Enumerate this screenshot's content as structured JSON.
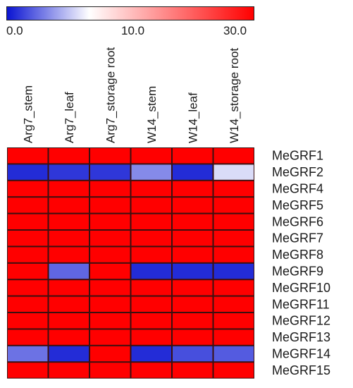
{
  "chart_data": {
    "type": "heatmap",
    "color_scale": {
      "min": 0.0,
      "mid": 10.0,
      "max": 30.0,
      "min_label": "0.0",
      "mid_label": "10.0",
      "max_label": "30.0",
      "colors": [
        "#0a14d2",
        "#ffffff",
        "#ff0000"
      ]
    },
    "columns": [
      "Arg7_stem",
      "Arg7_leaf",
      "Arg7_storage root",
      "W14_stem",
      "W14_leaf",
      "W14_storage root"
    ],
    "rows": [
      "MeGRF1",
      "MeGRF2",
      "MeGRF4",
      "MeGRF5",
      "MeGRF6",
      "MeGRF7",
      "MeGRF8",
      "MeGRF9",
      "MeGRF10",
      "MeGRF11",
      "MeGRF12",
      "MeGRF13",
      "MeGRF14",
      "MeGRF15"
    ],
    "values": [
      [
        30,
        30,
        30,
        30,
        30,
        30
      ],
      [
        1.0,
        1.5,
        1.5,
        5.0,
        1.0,
        8.5
      ],
      [
        30,
        30,
        30,
        30,
        30,
        30
      ],
      [
        30,
        30,
        30,
        30,
        30,
        30
      ],
      [
        30,
        30,
        30,
        30,
        30,
        30
      ],
      [
        30,
        30,
        30,
        30,
        30,
        30
      ],
      [
        30,
        30,
        30,
        30,
        30,
        30
      ],
      [
        30,
        3.5,
        30,
        1.0,
        1.0,
        1.0
      ],
      [
        30,
        30,
        30,
        30,
        30,
        30
      ],
      [
        30,
        30,
        30,
        30,
        30,
        30
      ],
      [
        30,
        30,
        30,
        30,
        30,
        30
      ],
      [
        30,
        30,
        30,
        30,
        30,
        30
      ],
      [
        4.0,
        1.0,
        30,
        1.0,
        2.5,
        3.0
      ],
      [
        30,
        30,
        30,
        30,
        30,
        30
      ]
    ]
  }
}
